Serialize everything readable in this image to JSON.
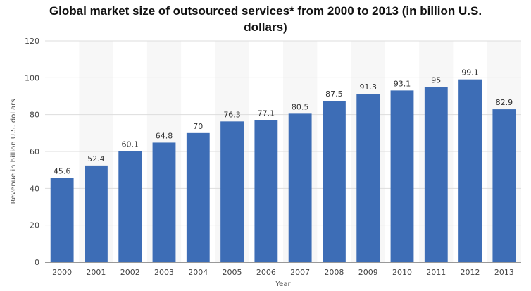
{
  "chart_data": {
    "type": "bar",
    "title_line1": "Global market size of outsourced services* from 2000 to 2013 (in billion U.S.",
    "title_line2": "dollars)",
    "xlabel": "Year",
    "ylabel": "Revenue in billion U.S. dollars",
    "ylim": [
      0,
      120
    ],
    "yticks": [
      0,
      20,
      40,
      60,
      80,
      100,
      120
    ],
    "grid": true,
    "categories": [
      "2000",
      "2001",
      "2002",
      "2003",
      "2004",
      "2005",
      "2006",
      "2007",
      "2008",
      "2009",
      "2010",
      "2011",
      "2012",
      "2013"
    ],
    "values": [
      45.6,
      52.4,
      60.1,
      64.8,
      70,
      76.3,
      77.1,
      80.5,
      87.5,
      91.3,
      93.1,
      95,
      99.1,
      82.9
    ],
    "value_labels": [
      "45.6",
      "52.4",
      "60.1",
      "64.8",
      "70",
      "76.3",
      "77.1",
      "80.5",
      "87.5",
      "91.3",
      "93.1",
      "95",
      "99.1",
      "82.9"
    ]
  },
  "colors": {
    "bar": "#3d6db6",
    "band": "#f7f7f7",
    "grid": "#dddddd",
    "axis": "#999999"
  }
}
